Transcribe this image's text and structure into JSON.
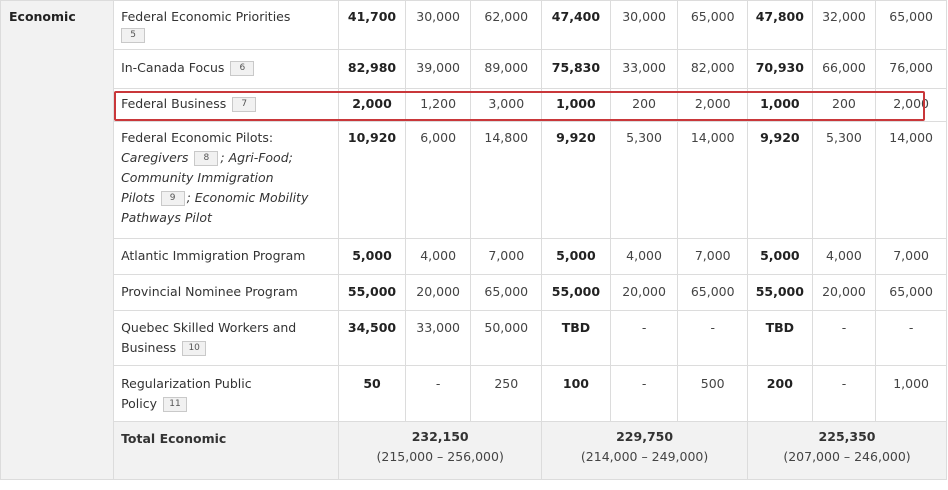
{
  "category": "Economic",
  "rows": [
    {
      "program": "Federal Economic Priorities",
      "footnote": "5",
      "values": [
        "41,700",
        "30,000",
        "62,000",
        "47,400",
        "30,000",
        "65,000",
        "47,800",
        "32,000",
        "65,000"
      ]
    },
    {
      "program": "In-Canada Focus",
      "footnote": "6",
      "values": [
        "82,980",
        "39,000",
        "89,000",
        "75,830",
        "33,000",
        "82,000",
        "70,930",
        "66,000",
        "76,000"
      ]
    },
    {
      "program": "Federal Business",
      "footnote": "7",
      "values": [
        "2,000",
        "1,200",
        "3,000",
        "1,000",
        "200",
        "2,000",
        "1,000",
        "200",
        "2,000"
      ]
    },
    {
      "program": "Federal Economic Pilots:",
      "pilot_line1": "Caregivers",
      "footnote": "8",
      "pilot_line2": "; Agri-Food;",
      "pilot_line3": "Community Immigration",
      "pilot_line4": "Pilots",
      "footnote2": "9",
      "pilot_line5": "; Economic Mobility",
      "pilot_line6": "Pathways Pilot",
      "values": [
        "10,920",
        "6,000",
        "14,800",
        "9,920",
        "5,300",
        "14,000",
        "9,920",
        "5,300",
        "14,000"
      ]
    },
    {
      "program": "Atlantic Immigration Program",
      "values": [
        "5,000",
        "4,000",
        "7,000",
        "5,000",
        "4,000",
        "7,000",
        "5,000",
        "4,000",
        "7,000"
      ]
    },
    {
      "program": "Provincial Nominee Program",
      "values": [
        "55,000",
        "20,000",
        "65,000",
        "55,000",
        "20,000",
        "65,000",
        "55,000",
        "20,000",
        "65,000"
      ]
    },
    {
      "program_line1": "Quebec Skilled Workers and",
      "program_line2": "Business",
      "footnote": "10",
      "values": [
        "34,500",
        "33,000",
        "50,000",
        "TBD",
        "-",
        "-",
        "TBD",
        "-",
        "-"
      ]
    },
    {
      "program_line1": "Regularization Public",
      "program_line2": "Policy",
      "footnote": "11",
      "values": [
        "50",
        "-",
        "250",
        "100",
        "-",
        "500",
        "200",
        "-",
        "1,000"
      ]
    }
  ],
  "total": {
    "label": "Total Economic",
    "years": [
      {
        "sum": "232,150",
        "range": "(215,000 – 256,000)"
      },
      {
        "sum": "229,750",
        "range": "(214,000 – 249,000)"
      },
      {
        "sum": "225,350",
        "range": "(207,000 – 246,000)"
      }
    ]
  }
}
